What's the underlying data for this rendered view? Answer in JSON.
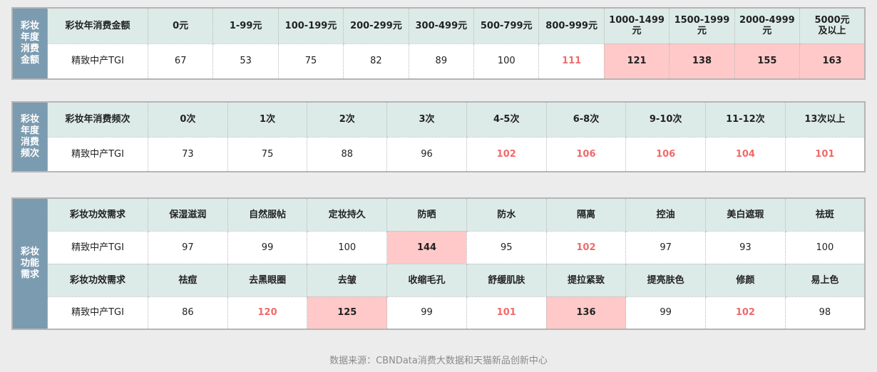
{
  "tables": [
    {
      "side_label": "彩妆\n年度\n消费\n金额",
      "rows": [
        {
          "type": "header",
          "name": "彩妆年消费金额",
          "cells": [
            [
              "0元",
              "n"
            ],
            [
              "1-99元",
              "n"
            ],
            [
              "100-199元",
              "n"
            ],
            [
              "200-299元",
              "n"
            ],
            [
              "300-499元",
              "n"
            ],
            [
              "500-799元",
              "n"
            ],
            [
              "800-999元",
              "n"
            ],
            [
              "1000-1499\n元",
              "n"
            ],
            [
              "1500-1999\n元",
              "n"
            ],
            [
              "2000-4999\n元",
              "n"
            ],
            [
              "5000元\n及以上",
              "n"
            ]
          ]
        },
        {
          "type": "data",
          "name": "精致中产TGI",
          "cells": [
            [
              "67",
              "n"
            ],
            [
              "53",
              "n"
            ],
            [
              "75",
              "n"
            ],
            [
              "82",
              "n"
            ],
            [
              "89",
              "n"
            ],
            [
              "100",
              "n"
            ],
            [
              "111",
              "r"
            ],
            [
              "121",
              "p"
            ],
            [
              "138",
              "p"
            ],
            [
              "155",
              "p"
            ],
            [
              "163",
              "p"
            ]
          ]
        }
      ]
    },
    {
      "side_label": "彩妆\n年度\n消费\n频次",
      "rows": [
        {
          "type": "header",
          "name": "彩妆年消费频次",
          "cells": [
            [
              "0次",
              "n"
            ],
            [
              "1次",
              "n"
            ],
            [
              "2次",
              "n"
            ],
            [
              "3次",
              "n"
            ],
            [
              "4-5次",
              "n"
            ],
            [
              "6-8次",
              "n"
            ],
            [
              "9-10次",
              "n"
            ],
            [
              "11-12次",
              "n"
            ],
            [
              "13次以上",
              "n"
            ]
          ]
        },
        {
          "type": "data",
          "name": "精致中产TGI",
          "cells": [
            [
              "73",
              "n"
            ],
            [
              "75",
              "n"
            ],
            [
              "88",
              "n"
            ],
            [
              "96",
              "n"
            ],
            [
              "102",
              "r"
            ],
            [
              "106",
              "r"
            ],
            [
              "106",
              "r"
            ],
            [
              "104",
              "r"
            ],
            [
              "101",
              "r"
            ]
          ]
        }
      ]
    },
    {
      "side_label": "彩妆\n功能\n需求",
      "rows": [
        {
          "type": "header",
          "name": "彩妆功效需求",
          "cells": [
            [
              "保湿滋润",
              "n"
            ],
            [
              "自然服帖",
              "n"
            ],
            [
              "定妆持久",
              "n"
            ],
            [
              "防晒",
              "n"
            ],
            [
              "防水",
              "n"
            ],
            [
              "隔离",
              "n"
            ],
            [
              "控油",
              "n"
            ],
            [
              "美白遮瑕",
              "n"
            ],
            [
              "祛斑",
              "n"
            ]
          ]
        },
        {
          "type": "data",
          "name": "精致中产TGI",
          "cells": [
            [
              "97",
              "n"
            ],
            [
              "99",
              "n"
            ],
            [
              "100",
              "n"
            ],
            [
              "144",
              "p"
            ],
            [
              "95",
              "n"
            ],
            [
              "102",
              "r"
            ],
            [
              "97",
              "n"
            ],
            [
              "93",
              "n"
            ],
            [
              "100",
              "n"
            ]
          ]
        },
        {
          "type": "header",
          "name": "彩妆功效需求",
          "cells": [
            [
              "祛痘",
              "n"
            ],
            [
              "去黑眼圈",
              "n"
            ],
            [
              "去皱",
              "n"
            ],
            [
              "收缩毛孔",
              "n"
            ],
            [
              "舒缓肌肤",
              "n"
            ],
            [
              "提拉紧致",
              "n"
            ],
            [
              "提亮肤色",
              "n"
            ],
            [
              "修颜",
              "n"
            ],
            [
              "易上色",
              "n"
            ]
          ]
        },
        {
          "type": "data",
          "name": "精致中产TGI",
          "cells": [
            [
              "86",
              "n"
            ],
            [
              "120",
              "r"
            ],
            [
              "125",
              "p"
            ],
            [
              "99",
              "n"
            ],
            [
              "101",
              "r"
            ],
            [
              "136",
              "p"
            ],
            [
              "99",
              "n"
            ],
            [
              "102",
              "r"
            ],
            [
              "98",
              "n"
            ]
          ]
        }
      ]
    }
  ],
  "footer": "数据来源：CBNData消费大数据和天猫新品创新中心",
  "colors": {
    "side": "#7b9bb0",
    "header": "#dcebe7",
    "highlight": "#ffc9c9",
    "red_text": "#f06a6a"
  }
}
